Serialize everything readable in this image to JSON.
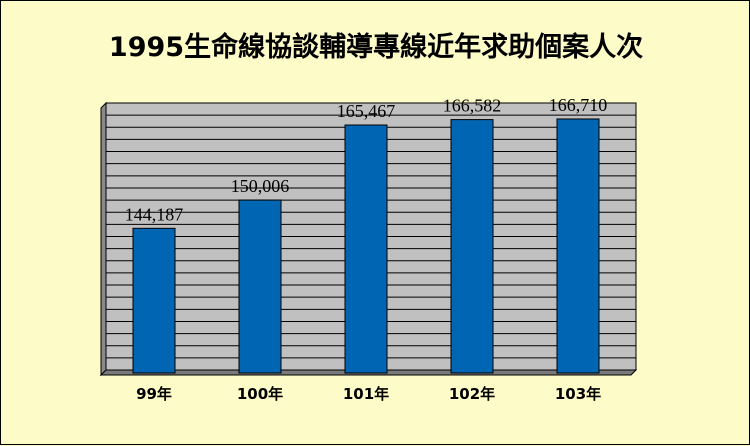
{
  "chart_data": {
    "type": "bar",
    "title": "1995生命線協談輔導專線近年求助個案人次",
    "categories": [
      "99年",
      "100年",
      "101年",
      "102年",
      "103年"
    ],
    "values": [
      144187,
      150006,
      165467,
      166582,
      166710
    ],
    "value_labels": [
      "144,187",
      "150,006",
      "165,467",
      "166,582",
      "166,710"
    ],
    "xlabel": "",
    "ylabel": "",
    "y_tick_labels_shown": false,
    "grid": true,
    "legend": "none",
    "colors": {
      "bar": "#0066b3",
      "plot_background": "#c0c0c0",
      "page_background": "#fdfbc8",
      "gridline": "#000000"
    }
  }
}
